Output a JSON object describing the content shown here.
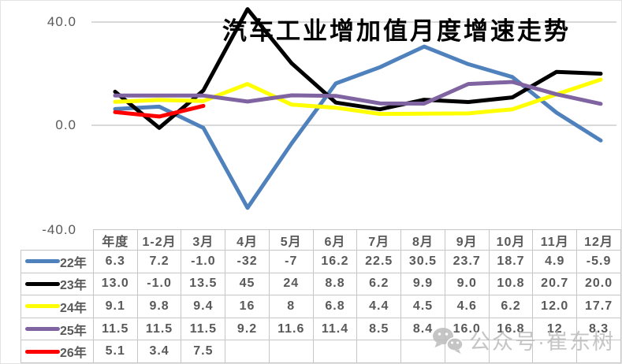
{
  "title": "汽车工业增加值月度增速走势",
  "axis": {
    "yticks": [
      "40.0",
      "0.0",
      "-40.0"
    ]
  },
  "chart_data": {
    "type": "line",
    "title": "汽车工业增加值月度增速走势",
    "categories": [
      "年度",
      "1-2月",
      "3月",
      "4月",
      "5月",
      "6月",
      "7月",
      "8月",
      "9月",
      "10月",
      "11月",
      "12月"
    ],
    "series": [
      {
        "name": "22年",
        "color": "#4F81BD",
        "values": [
          6.3,
          7.2,
          -1.0,
          -32,
          -7,
          16.2,
          22.5,
          30.5,
          23.7,
          18.7,
          4.9,
          -5.9
        ]
      },
      {
        "name": "23年",
        "color": "#000000",
        "values": [
          13.0,
          -1.0,
          13.5,
          45,
          24,
          8.8,
          6.2,
          9.9,
          9.0,
          10.8,
          20.7,
          20.0
        ]
      },
      {
        "name": "24年",
        "color": "#FFFF00",
        "values": [
          9.1,
          9.8,
          9.4,
          16,
          8,
          6.8,
          4.4,
          4.5,
          4.6,
          6.2,
          12.0,
          17.7
        ]
      },
      {
        "name": "25年",
        "color": "#8064A2",
        "values": [
          11.5,
          11.5,
          11.5,
          9.2,
          11.6,
          11.4,
          8.5,
          8.4,
          16.0,
          16.8,
          12,
          8.3
        ]
      },
      {
        "name": "26年",
        "color": "#FF0000",
        "values": [
          5.1,
          3.4,
          7.5
        ]
      }
    ],
    "ylim": [
      -40,
      40
    ],
    "ytick_values": [
      40,
      0,
      -40
    ],
    "grid": true,
    "gridline_color": "#d9d9d9",
    "legend_position": "table-left"
  },
  "table": {
    "corner_label": "",
    "headers": [
      "年度",
      "1-2月",
      "3月",
      "4月",
      "5月",
      "6月",
      "7月",
      "8月",
      "9月",
      "10月",
      "11月",
      "12月"
    ],
    "rows": [
      {
        "label": "22年",
        "color": "#4F81BD",
        "cells": [
          "6.3",
          "7.2",
          "-1.0",
          "-32",
          "-7",
          "16.2",
          "22.5",
          "30.5",
          "23.7",
          "18.7",
          "4.9",
          "-5.9"
        ]
      },
      {
        "label": "23年",
        "color": "#000000",
        "cells": [
          "13.0",
          "-1.0",
          "13.5",
          "45",
          "24",
          "8.8",
          "6.2",
          "9.9",
          "9.0",
          "10.8",
          "20.7",
          "20.0"
        ]
      },
      {
        "label": "24年",
        "color": "#FFFF00",
        "cells": [
          "9.1",
          "9.8",
          "9.4",
          "16",
          "8",
          "6.8",
          "4.4",
          "4.5",
          "4.6",
          "6.2",
          "12.0",
          "17.7"
        ]
      },
      {
        "label": "25年",
        "color": "#8064A2",
        "cells": [
          "11.5",
          "11.5",
          "11.5",
          "9.2",
          "11.6",
          "11.4",
          "8.5",
          "8.4",
          "16.0",
          "16.8",
          "12",
          "8.3"
        ]
      },
      {
        "label": "26年",
        "color": "#FF0000",
        "cells": [
          "5.1",
          "3.4",
          "7.5",
          "",
          "",
          "",
          "",
          "",
          "",
          "",
          "",
          ""
        ]
      }
    ]
  },
  "watermark": {
    "icon": "wechat-icon",
    "text": "公众号·崔东树"
  }
}
